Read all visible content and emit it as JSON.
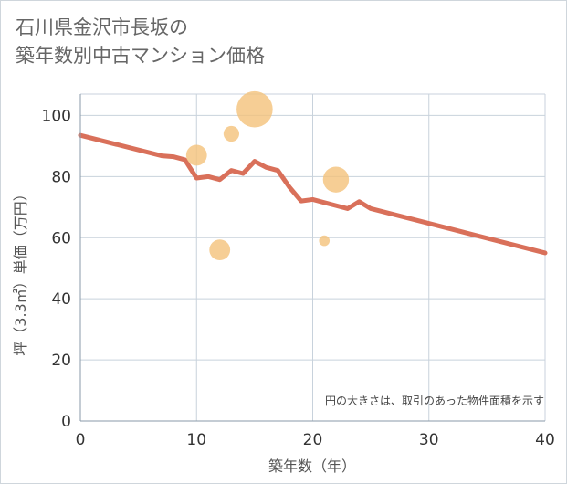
{
  "title": {
    "line1": "石川県金沢市長坂の",
    "line2": "築年数別中古マンション価格"
  },
  "note": "円の大きさは、取引のあった物件面積を示す",
  "colors": {
    "line": "#d9705a",
    "bubble": "#f4c27a",
    "grid": "#c8d2dc",
    "background": "#ffffff"
  },
  "chart_data": {
    "type": "scatter",
    "xlabel": "築年数（年）",
    "ylabel": "坪（3.3㎡）単価（万円）",
    "xlim": [
      0,
      40
    ],
    "ylim": [
      0,
      107
    ],
    "x_ticks": [
      "0",
      "10",
      "20",
      "30",
      "40"
    ],
    "y_ticks": [
      "0",
      "20",
      "40",
      "60",
      "80",
      "100"
    ],
    "grid": true,
    "trend_line": {
      "x": [
        0,
        7,
        8,
        9,
        10,
        11,
        12,
        13,
        14,
        15,
        16,
        17,
        18,
        19,
        20,
        21,
        22,
        23,
        24,
        25,
        40
      ],
      "y": [
        93.5,
        86.8,
        86.5,
        85.5,
        79.5,
        80.0,
        79.0,
        82.0,
        81.0,
        85.0,
        83.0,
        82.0,
        76.5,
        72.0,
        72.5,
        71.5,
        70.5,
        69.5,
        71.8,
        69.5,
        55.0
      ]
    },
    "bubbles": [
      {
        "x": 10,
        "y": 87,
        "size": 3
      },
      {
        "x": 12,
        "y": 56,
        "size": 3
      },
      {
        "x": 13,
        "y": 94,
        "size": 2
      },
      {
        "x": 15,
        "y": 102,
        "size": 6
      },
      {
        "x": 21,
        "y": 59,
        "size": 1
      },
      {
        "x": 22,
        "y": 79,
        "size": 4
      }
    ]
  }
}
